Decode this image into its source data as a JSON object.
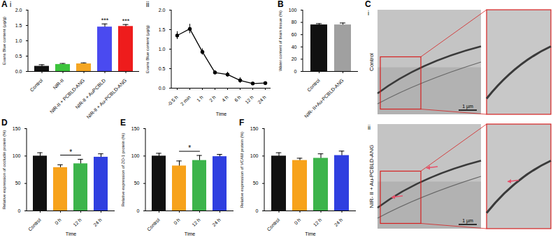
{
  "chart_data": [
    {
      "type": "bar",
      "panel": "A",
      "subpanel": "i",
      "y_label": "Evans Blue content (μg/g)",
      "categories": [
        "Control",
        "NIR-II",
        "NIR-II + PCBLD-ANG",
        "NIR-II + AuPCBLD",
        "NIR-II + Au-PCBLD-ANG"
      ],
      "values": [
        0.17,
        0.23,
        0.25,
        1.45,
        1.47
      ],
      "errors": [
        0.05,
        0.03,
        0.03,
        0.1,
        0.06
      ],
      "colors": [
        "#111111",
        "#3cc43c",
        "#f5a623",
        "#4a4af0",
        "#ee1c1c"
      ],
      "ylim": [
        0,
        2.0
      ],
      "yticks": [
        {
          "value": 0,
          "label": "0.0"
        },
        {
          "value": 0.5,
          "label": "0.5"
        },
        {
          "value": 1.0,
          "label": "1.0"
        },
        {
          "value": 1.5,
          "label": "1.5"
        },
        {
          "value": 2.0,
          "label": "2.0"
        }
      ],
      "annotations": [
        {
          "text": "***",
          "category": "NIR-II + AuPCBLD"
        },
        {
          "text": "***",
          "category": "NIR-II + Au-PCBLD-ANG"
        }
      ]
    },
    {
      "type": "line",
      "subpanel": "ii",
      "y_label": "Evans Blue content (μg/g)",
      "x_label": "Time",
      "categories": [
        "-0.5 h",
        "2 min",
        "1 h",
        "2 h",
        "4 h",
        "6 h",
        "12 h",
        "24 h"
      ],
      "values": [
        1.35,
        1.52,
        0.93,
        0.4,
        0.35,
        0.2,
        0.12,
        0.13
      ],
      "errors": [
        0.1,
        0.12,
        0.08,
        0.05,
        0.06,
        0.07,
        0.03,
        0.02
      ],
      "color": "#000000",
      "marker": "circle",
      "ylim": [
        0,
        2.0
      ],
      "yticks": [
        {
          "value": 0,
          "label": "0.0"
        },
        {
          "value": 0.5,
          "label": "0.5"
        },
        {
          "value": 1.0,
          "label": "1.0"
        },
        {
          "value": 1.5,
          "label": "1.5"
        },
        {
          "value": 2.0,
          "label": "2.0"
        }
      ]
    },
    {
      "type": "bar",
      "panel": "B",
      "y_label": "Water content of brain tissue (%)",
      "categories": [
        "Control",
        "NIR- II+Au-PCBLD-ANG"
      ],
      "values": [
        76,
        76
      ],
      "errors": [
        2,
        3
      ],
      "colors": [
        "#111111",
        "#a0a0a0"
      ],
      "ylim": [
        0,
        100
      ],
      "yticks": [
        0,
        20,
        40,
        60,
        80,
        100
      ]
    },
    {
      "type": "bar",
      "panel": "D",
      "y_label": "Relative expression of occludin protein (%)",
      "x_label": "Time",
      "categories": [
        "Control",
        "0 h",
        "12 h",
        "24 h"
      ],
      "values": [
        100,
        79,
        86,
        98
      ],
      "errors": [
        6,
        5,
        8,
        6
      ],
      "colors": [
        "#111111",
        "#f7a21b",
        "#3cb44b",
        "#2f3fe0"
      ],
      "ylim": [
        0,
        150
      ],
      "yticks": [
        0,
        50,
        100,
        150
      ],
      "annotations": [
        {
          "text": "*",
          "from": "0 h",
          "to": "12 h"
        }
      ]
    },
    {
      "type": "bar",
      "panel": "E",
      "y_label": "Relative expression of ZO-1 protein (%)",
      "x_label": "Time",
      "categories": [
        "Control",
        "0 h",
        "12 h",
        "24 h"
      ],
      "values": [
        100,
        82,
        92,
        99
      ],
      "errors": [
        5,
        9,
        9,
        4
      ],
      "colors": [
        "#111111",
        "#f7a21b",
        "#3cb44b",
        "#2f3fe0"
      ],
      "ylim": [
        0,
        150
      ],
      "yticks": [
        0,
        50,
        100,
        150
      ],
      "annotations": [
        {
          "text": "*",
          "from": "0 h",
          "to": "12 h"
        }
      ]
    },
    {
      "type": "bar",
      "panel": "F",
      "y_label": "Relative expression of VCAM protein (%)",
      "x_label": "Time",
      "categories": [
        "Control",
        "0 h",
        "12 h",
        "24 h"
      ],
      "values": [
        100,
        92,
        96,
        101
      ],
      "errors": [
        6,
        4,
        8,
        8
      ],
      "colors": [
        "#111111",
        "#f7a21b",
        "#3cb44b",
        "#2f3fe0"
      ],
      "ylim": [
        0,
        150
      ],
      "yticks": [
        0,
        50,
        100,
        150
      ]
    }
  ],
  "panel_C": {
    "panel": "C",
    "rows": [
      {
        "subpanel": "i",
        "label": "Control",
        "scale_bar": "1 µm"
      },
      {
        "subpanel": "ii",
        "label": "NIR- II + Au-PCBLD-ANG",
        "scale_bar": "1 µm"
      }
    ]
  }
}
